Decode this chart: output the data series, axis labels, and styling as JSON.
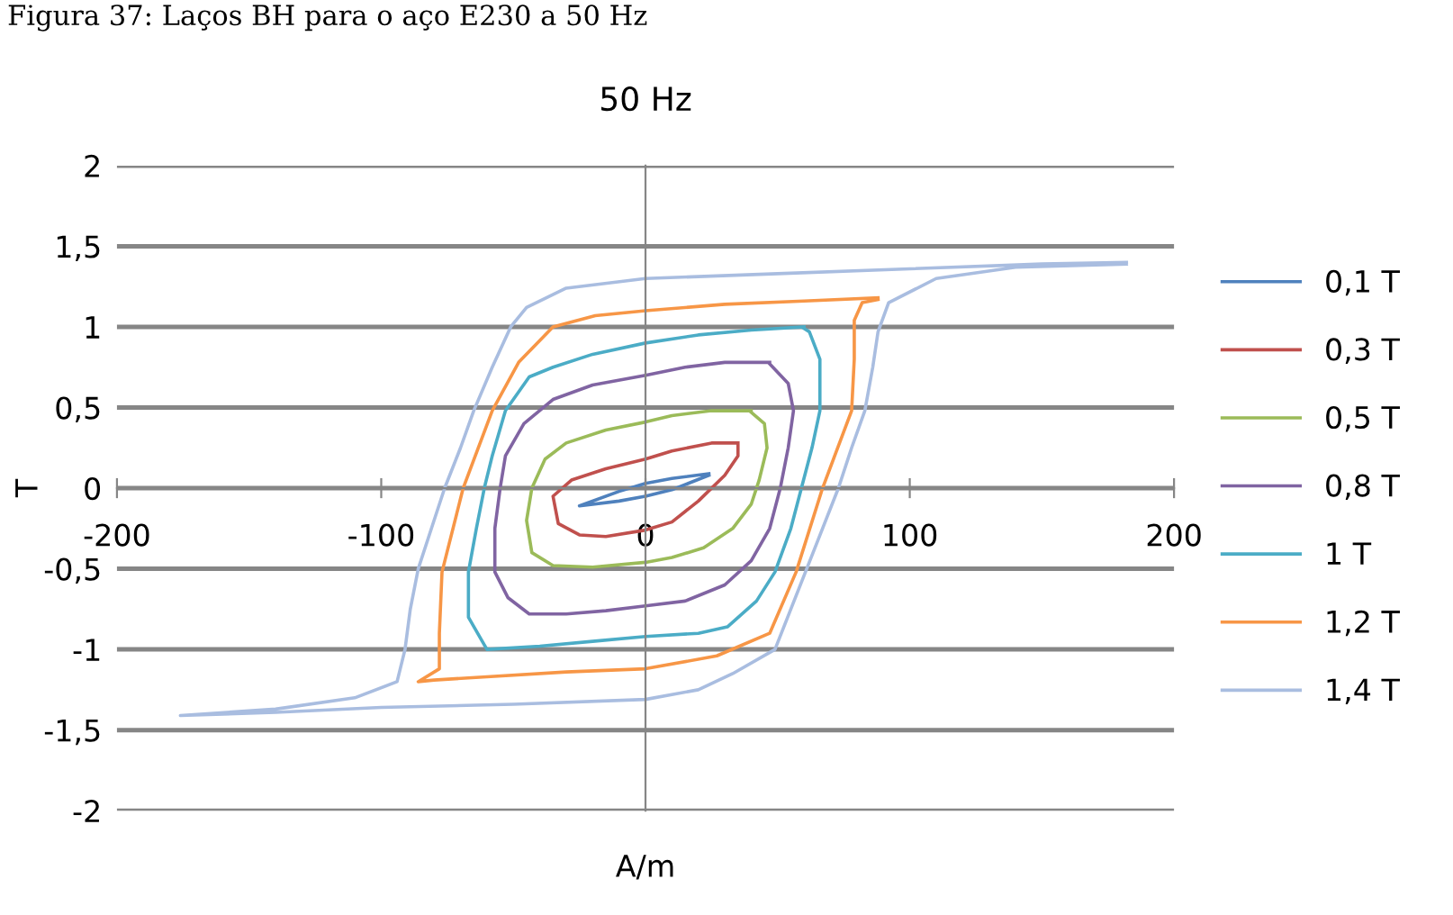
{
  "chart_data": {
    "type": "line",
    "title": "50 Hz",
    "xlabel": "A/m",
    "ylabel": "T",
    "annotations": [
      "Figura 37: Laços BH para o aço E230 a 50 Hz"
    ],
    "xlim": [
      -200,
      200
    ],
    "xticks": [
      -200,
      -100,
      0,
      100,
      200
    ],
    "ylim": [
      -2,
      2
    ],
    "yticks": [
      {
        "value": -2,
        "label": "-2"
      },
      {
        "value": -1.5,
        "label": "-1,5"
      },
      {
        "value": -1,
        "label": "-1"
      },
      {
        "value": -0.5,
        "label": "-0,5"
      },
      {
        "value": 0,
        "label": "0"
      },
      {
        "value": 0.5,
        "label": "0,5"
      },
      {
        "value": 1,
        "label": "1"
      },
      {
        "value": 1.5,
        "label": "1,5"
      },
      {
        "value": 2,
        "label": "2"
      }
    ],
    "grid": "y",
    "legend": "right",
    "marker": "none",
    "line_style": "solid",
    "series": [
      {
        "name": "0,1 T",
        "color": "#4f81bd",
        "x": [
          24,
          10,
          0,
          -10,
          -25,
          -10,
          0,
          10,
          24
        ],
        "values": [
          0.09,
          0.06,
          0.03,
          -0.02,
          -0.11,
          -0.08,
          -0.05,
          -0.01,
          0.08
        ]
      },
      {
        "name": "0,3 T",
        "color": "#c0504d",
        "x": [
          35,
          25,
          10,
          0,
          -15,
          -28,
          -35,
          -33,
          -25,
          -15,
          0,
          10,
          20,
          30,
          35,
          35
        ],
        "values": [
          0.28,
          0.28,
          0.23,
          0.18,
          0.12,
          0.05,
          -0.05,
          -0.22,
          -0.29,
          -0.3,
          -0.26,
          -0.21,
          -0.08,
          0.08,
          0.2,
          0.27
        ]
      },
      {
        "name": "0,5 T",
        "color": "#9bbb59",
        "x": [
          40,
          25,
          10,
          0,
          -15,
          -30,
          -38,
          -43,
          -45,
          -43,
          -35,
          -20,
          0,
          10,
          22,
          33,
          40,
          43,
          46,
          45,
          40
        ],
        "values": [
          0.48,
          0.48,
          0.45,
          0.41,
          0.36,
          0.28,
          0.18,
          0,
          -0.2,
          -0.4,
          -0.48,
          -0.49,
          -0.46,
          -0.43,
          -0.37,
          -0.25,
          -0.1,
          0.05,
          0.25,
          0.4,
          0.47
        ]
      },
      {
        "name": "0,8 T",
        "color": "#8064a2",
        "x": [
          47,
          30,
          15,
          0,
          -20,
          -35,
          -46,
          -53,
          -55,
          -57,
          -57,
          -52,
          -44,
          -30,
          -15,
          0,
          15,
          30,
          40,
          47,
          51,
          54,
          56,
          54,
          47
        ],
        "values": [
          0.78,
          0.78,
          0.75,
          0.7,
          0.64,
          0.55,
          0.4,
          0.2,
          0,
          -0.25,
          -0.52,
          -0.68,
          -0.78,
          -0.78,
          -0.76,
          -0.73,
          -0.7,
          -0.6,
          -0.45,
          -0.25,
          0,
          0.25,
          0.48,
          0.65,
          0.77
        ]
      },
      {
        "name": "1 T",
        "color": "#4bacc6",
        "x": [
          60,
          40,
          20,
          0,
          -20,
          -35,
          -44,
          -53,
          -58,
          -61,
          -64,
          -67,
          -67,
          -60,
          -40,
          -20,
          0,
          20,
          31,
          42,
          49,
          55,
          59,
          63,
          66,
          66,
          62,
          60
        ],
        "values": [
          1.0,
          0.98,
          0.95,
          0.9,
          0.83,
          0.75,
          0.69,
          0.48,
          0.2,
          0,
          -0.25,
          -0.52,
          -0.8,
          -1.0,
          -0.98,
          -0.95,
          -0.92,
          -0.9,
          -0.86,
          -0.7,
          -0.52,
          -0.25,
          0,
          0.25,
          0.48,
          0.8,
          0.97,
          0.99
        ]
      },
      {
        "name": "1,2 T",
        "color": "#f79646",
        "x": [
          88,
          60,
          30,
          0,
          -19,
          -35,
          -48,
          -58,
          -69,
          -77,
          -78,
          -78,
          -86,
          -80,
          -60,
          -30,
          0,
          27,
          47,
          57,
          67,
          78,
          79,
          79,
          82,
          88
        ],
        "values": [
          1.18,
          1.16,
          1.14,
          1.1,
          1.07,
          1.0,
          0.78,
          0.48,
          0,
          -0.52,
          -0.9,
          -1.12,
          -1.2,
          -1.19,
          -1.17,
          -1.14,
          -1.12,
          -1.04,
          -0.9,
          -0.52,
          0,
          0.48,
          0.8,
          1.04,
          1.15,
          1.17
        ]
      },
      {
        "name": "1,4 T",
        "color": "#a9bde0",
        "x": [
          182,
          150,
          100,
          50,
          0,
          -30,
          -45,
          -51,
          -58,
          -65,
          -70,
          -76,
          -81,
          -86,
          -89,
          -91,
          -94,
          -110,
          -140,
          -176,
          -140,
          -100,
          -50,
          0,
          20,
          33,
          49,
          55,
          61,
          67,
          73,
          78,
          83,
          86,
          88,
          92,
          110,
          140,
          182
        ],
        "values": [
          1.4,
          1.39,
          1.36,
          1.33,
          1.3,
          1.24,
          1.12,
          1.0,
          0.75,
          0.48,
          0.25,
          0,
          -0.25,
          -0.5,
          -0.75,
          -1.0,
          -1.2,
          -1.3,
          -1.37,
          -1.41,
          -1.39,
          -1.36,
          -1.34,
          -1.31,
          -1.25,
          -1.15,
          -1.0,
          -0.75,
          -0.5,
          -0.25,
          0,
          0.25,
          0.48,
          0.75,
          0.97,
          1.15,
          1.3,
          1.37,
          1.39
        ]
      }
    ]
  }
}
